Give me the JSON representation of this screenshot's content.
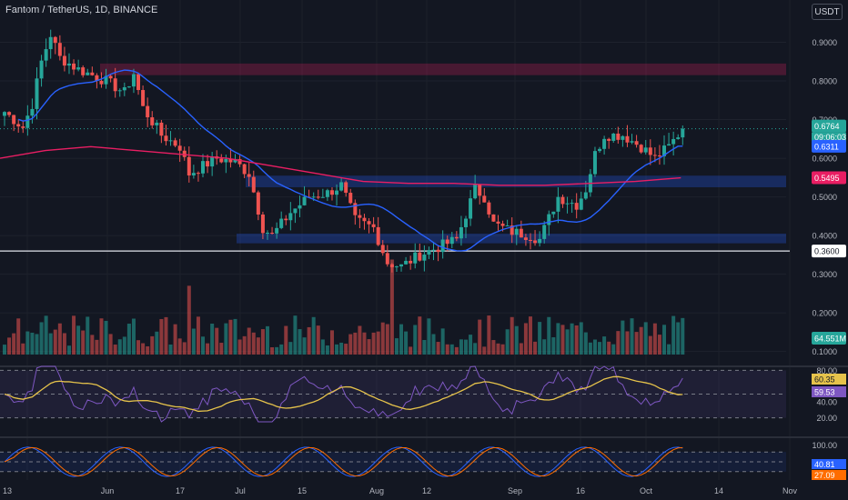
{
  "header": {
    "symbol": "Fantom / TetherUS, 1D, BINANCE",
    "currency_button": "USDT"
  },
  "colors": {
    "background": "#131722",
    "up": "#26a69a",
    "down": "#ef5350",
    "ma_fast": "#2962ff",
    "ma_slow": "#e91e63",
    "rsi": "#7e57c2",
    "rsi_ma": "#e6c34b",
    "stoch_k": "#2962ff",
    "stoch_d": "#ff6d00"
  },
  "price_axis": {
    "ticks": [
      "0.9000",
      "0.8000",
      "0.7000",
      "0.6000",
      "0.5000",
      "0.4000",
      "0.3000",
      "0.2000",
      "0.1000"
    ],
    "tick_values": [
      0.9,
      0.8,
      0.7,
      0.6,
      0.5,
      0.4,
      0.3,
      0.2,
      0.1
    ],
    "labels": {
      "last_price": "0.6764",
      "countdown": "09:06:03",
      "ma_fast_value": "0.6311",
      "ma_slow_value": "0.5495",
      "horizontal_line": "0.3600",
      "volume": "64.551M"
    }
  },
  "time_axis": {
    "ticks": [
      "13",
      "Jun",
      "17",
      "Jul",
      "15",
      "Aug",
      "12",
      "Sep",
      "16",
      "Oct",
      "14",
      "Nov"
    ]
  },
  "rsi_axis": {
    "ticks": [
      "80.00",
      "40.00",
      "20.00"
    ],
    "value_labels": [
      "60.35",
      "59.53"
    ]
  },
  "stoch_axis": {
    "ticks": [
      "100.00"
    ],
    "value_labels": [
      "40.81",
      "27.09"
    ]
  },
  "chart_data": {
    "type": "candlestick",
    "title": "Fantom / TetherUS, 1D, BINANCE",
    "ylim": [
      0.06,
      0.98
    ],
    "horizontal_line": 0.36,
    "zones": [
      {
        "color": "red",
        "from": 0.815,
        "to": 0.845
      },
      {
        "color": "blue",
        "from": 0.525,
        "to": 0.555
      },
      {
        "color": "blue",
        "from": 0.38,
        "to": 0.405
      }
    ],
    "last_price": 0.6764,
    "ma_fast_last": 0.6311,
    "ma_slow_last": 0.5495,
    "volume_last": "64.551M",
    "rsi_last": [
      60.35,
      59.53
    ],
    "stoch_last": [
      40.81,
      27.09
    ]
  }
}
